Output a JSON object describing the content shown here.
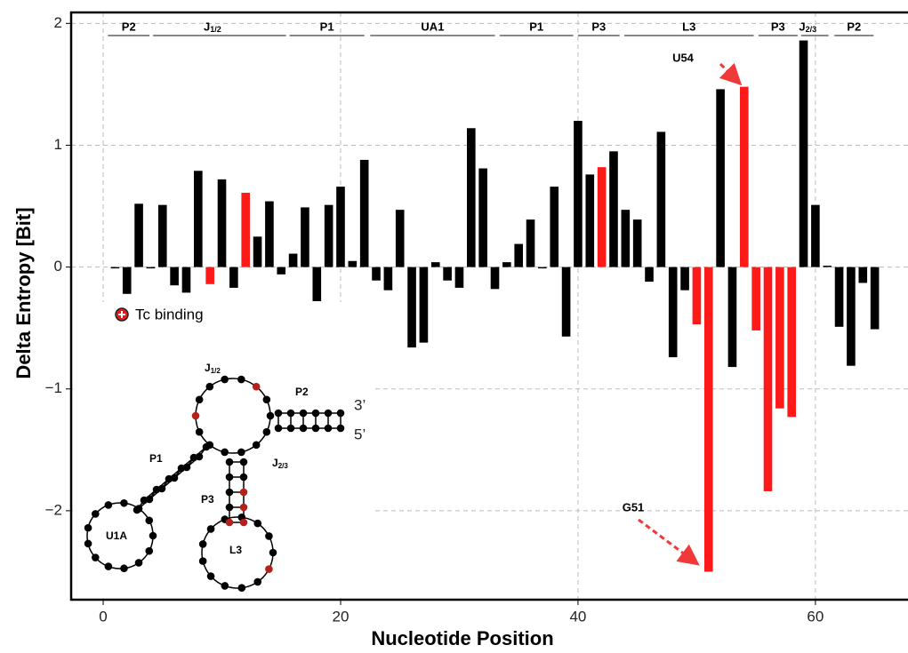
{
  "chart_data": {
    "type": "bar",
    "x_label": "Nucleotide Position",
    "y_label": "Delta Entropy [Bit]",
    "x": [
      1,
      2,
      3,
      4,
      5,
      6,
      7,
      8,
      9,
      10,
      11,
      12,
      13,
      14,
      15,
      16,
      17,
      18,
      19,
      20,
      21,
      22,
      23,
      24,
      25,
      26,
      27,
      28,
      29,
      30,
      31,
      32,
      33,
      34,
      35,
      36,
      37,
      38,
      39,
      40,
      41,
      42,
      43,
      44,
      45,
      46,
      47,
      48,
      49,
      50,
      51,
      52,
      53,
      54,
      55,
      56,
      57,
      58,
      59,
      60,
      61,
      62,
      63,
      64,
      65
    ],
    "values": [
      -0.01,
      -0.22,
      0.52,
      -0.01,
      0.51,
      -0.15,
      -0.21,
      0.79,
      -0.14,
      0.72,
      -0.17,
      0.61,
      0.25,
      0.54,
      -0.06,
      0.11,
      0.49,
      -0.28,
      0.51,
      0.66,
      0.05,
      0.88,
      -0.11,
      -0.19,
      0.47,
      -0.66,
      -0.62,
      0.04,
      -0.11,
      -0.17,
      1.14,
      0.81,
      -0.18,
      0.04,
      0.19,
      0.39,
      -0.01,
      0.66,
      -0.57,
      1.2,
      0.76,
      0.82,
      0.95,
      0.47,
      0.39,
      -0.12,
      1.11,
      -0.74,
      -0.19,
      -0.47,
      -2.5,
      1.46,
      -0.82,
      1.48,
      -0.52,
      -1.84,
      -1.16,
      -1.23,
      1.86,
      0.51,
      0.01,
      -0.49,
      -0.81,
      -0.13,
      -0.51
    ],
    "color": "#000000",
    "highlight_color": "#ff1a1a",
    "highlight": [
      9,
      12,
      42,
      50,
      51,
      54,
      55,
      56,
      57,
      58
    ],
    "xlim": [
      -2.7,
      67.8
    ],
    "ylim": [
      -2.73,
      2.09
    ],
    "xticks": [
      0,
      20,
      40,
      60
    ],
    "yticks": [
      {
        "value": -2,
        "label": "−2"
      },
      {
        "value": -1,
        "label": "−1"
      },
      0,
      1,
      2
    ],
    "grid": true,
    "regions": [
      {
        "name": "P2",
        "start": 0.4,
        "end": 3.9
      },
      {
        "name": "J",
        "sub": "1/2",
        "start": 4.2,
        "end": 15.4
      },
      {
        "name": "P1",
        "start": 15.7,
        "end": 22
      },
      {
        "name": "UA1",
        "start": 22.5,
        "end": 33
      },
      {
        "name": "P1",
        "start": 33.4,
        "end": 39.6
      },
      {
        "name": "P3",
        "start": 40,
        "end": 43.5
      },
      {
        "name": "L3",
        "start": 43.9,
        "end": 54.8
      },
      {
        "name": "P3",
        "start": 55.2,
        "end": 58.5
      },
      {
        "name": "J",
        "sub": "2/3",
        "start": 58.8,
        "end": 61.1
      },
      {
        "name": "P2",
        "start": 61.6,
        "end": 64.9
      }
    ],
    "annotations": [
      "U54",
      "G51"
    ],
    "legend": "Tc binding",
    "inset": {
      "J12": "J",
      "J12sub": "1/2",
      "P2": "P2",
      "three": "3’",
      "five": "5’",
      "P1": "P1",
      "J23": "J",
      "J23sub": "2/3",
      "P3": "P3",
      "U1A": "U1A",
      "L3": "L3"
    }
  }
}
